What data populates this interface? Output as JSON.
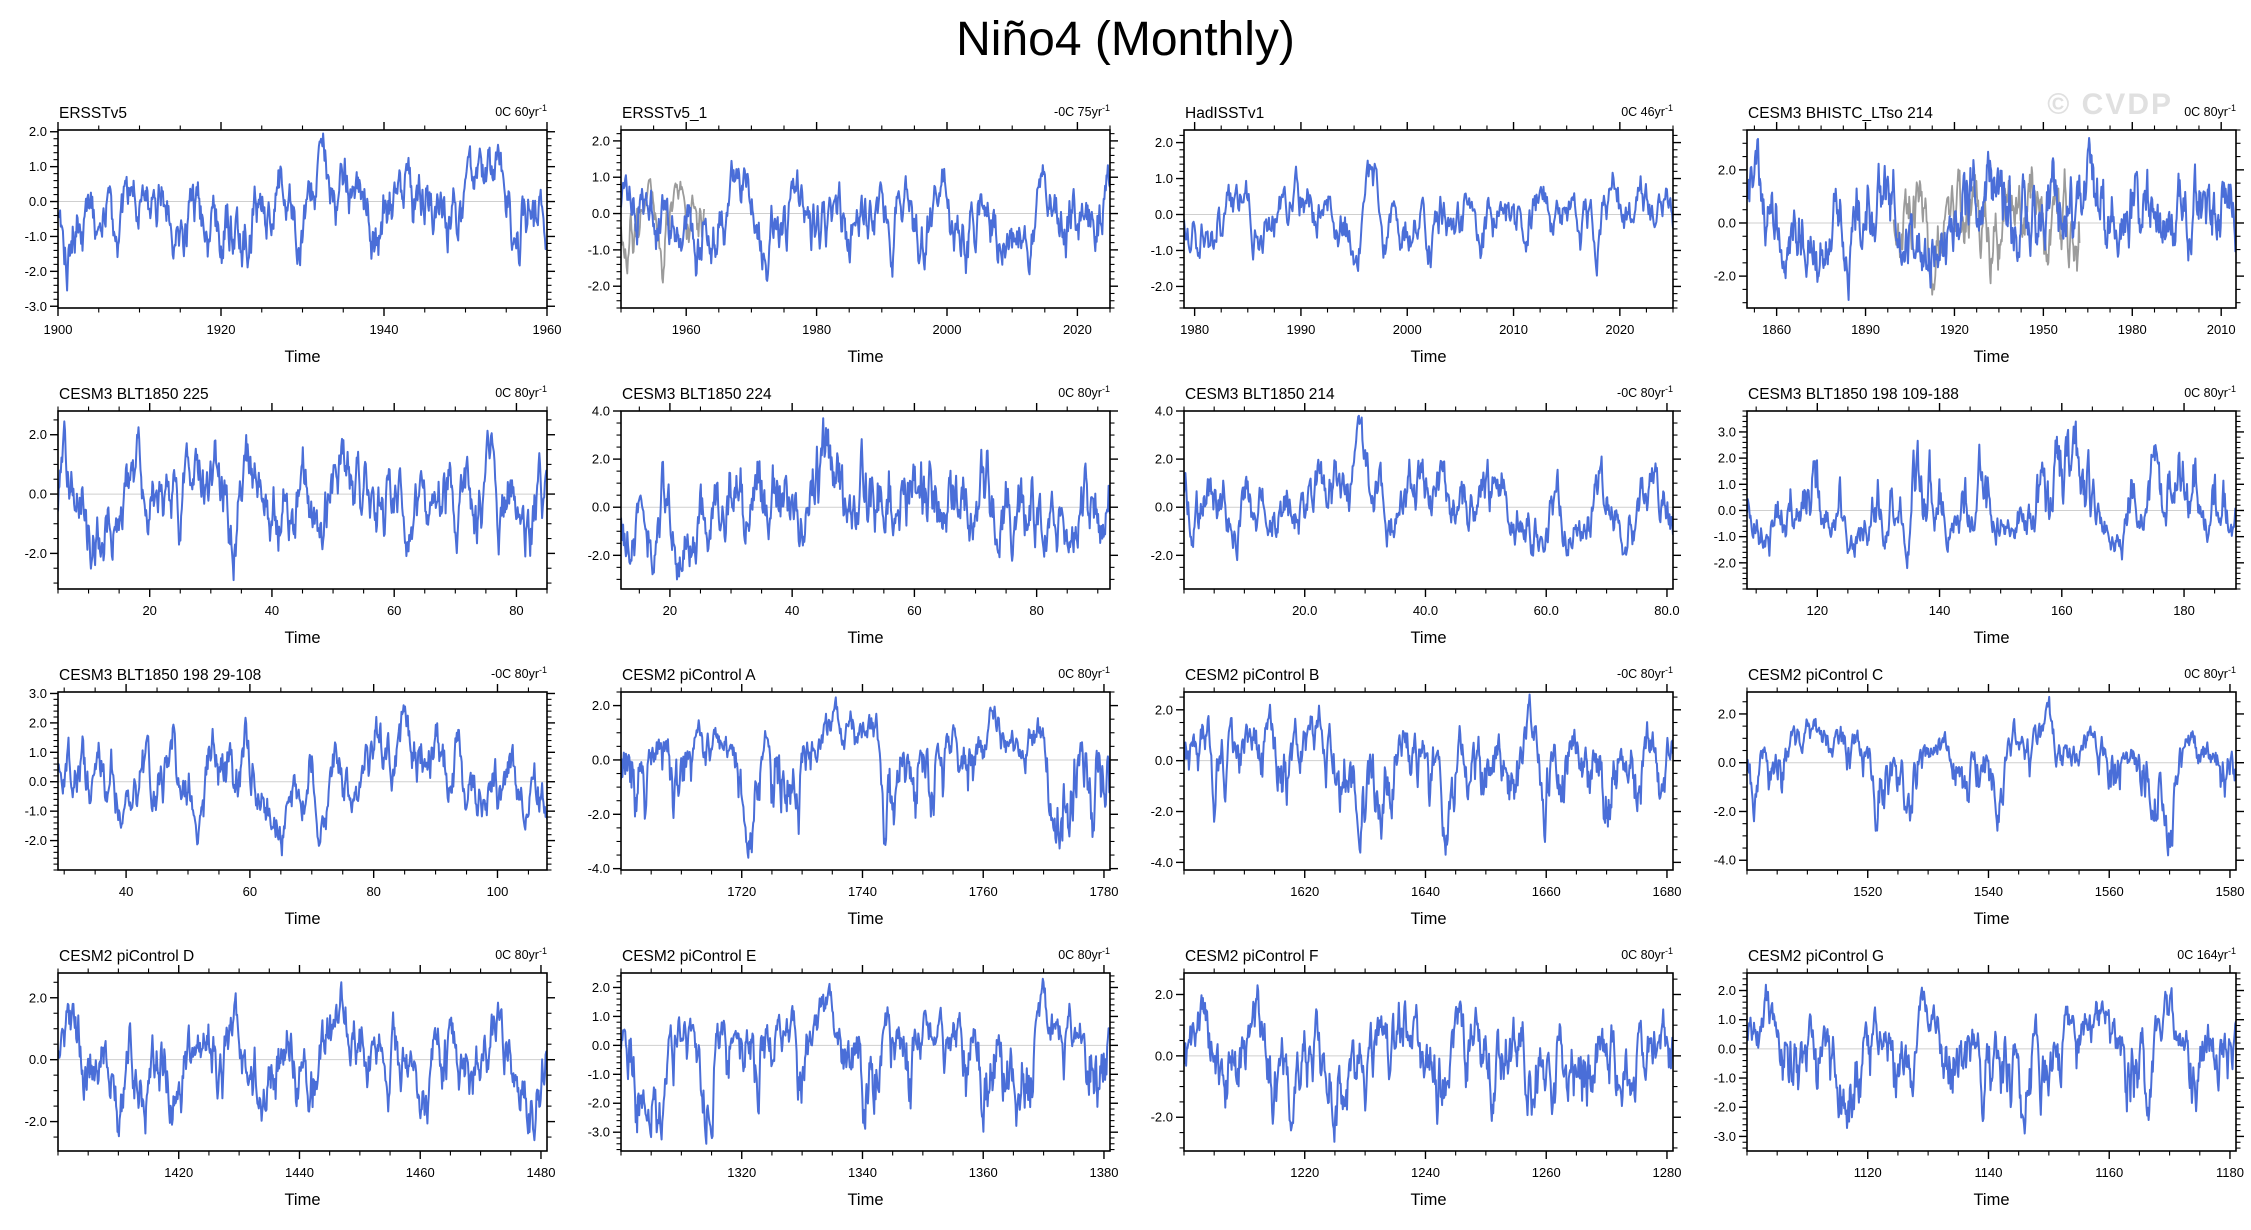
{
  "page": {
    "title": "Niño4 (Monthly)",
    "watermark": "© CVDP",
    "xlabel": "Time"
  },
  "colors": {
    "line": "#4A6ED8",
    "gray_line": "#9B9B9B",
    "zero_line": "#CFCFCF",
    "axis": "#000000",
    "watermark": "#E0E0E0"
  },
  "chart_data": [
    {
      "id": "ersstv5",
      "type": "line",
      "title": "ERSSTv5",
      "trend": {
        "text": "0C 60yr",
        "sup": "-1"
      },
      "xlabel": "Time",
      "ylabel": "",
      "legend": null,
      "grid": false,
      "xlim": [
        1900,
        1960
      ],
      "ylim": [
        -3.05,
        2.05
      ],
      "xticks": {
        "vals": [
          1900,
          1920,
          1940,
          1960
        ],
        "labels": [
          "1900",
          "1920",
          "1940",
          "1960"
        ],
        "minor_step": 5
      },
      "yticks": {
        "vals": [
          2,
          1,
          0,
          -1,
          -2,
          -3
        ],
        "labels": [
          "2.0",
          "1.0",
          "0.0",
          "-1.0",
          "-2.0",
          "-3.0"
        ],
        "minor_step": 0.2
      },
      "series": {
        "seed": 101,
        "points": 700,
        "approx_min": -2.55,
        "approx_max": 1.95
      },
      "gray_series": null
    },
    {
      "id": "ersstv5-1",
      "type": "line",
      "title": "ERSSTv5_1",
      "trend": {
        "text": "-0C 75yr",
        "sup": "-1"
      },
      "xlabel": "Time",
      "ylabel": "",
      "legend": null,
      "grid": false,
      "xlim": [
        1950,
        2025
      ],
      "ylim": [
        -2.6,
        2.3
      ],
      "xticks": {
        "vals": [
          1960,
          1980,
          2000,
          2020
        ],
        "labels": [
          "1960",
          "1980",
          "2000",
          "2020"
        ],
        "minor_step": 5
      },
      "yticks": {
        "vals": [
          2,
          1,
          0,
          -1,
          -2
        ],
        "labels": [
          "2.0",
          "1.0",
          "0.0",
          "-1.0",
          "-2.0"
        ],
        "minor_step": 0.2
      },
      "series": {
        "seed": 102,
        "points": 700,
        "approx_min": -1.85,
        "approx_max": 1.45
      },
      "gray_series": {
        "seed": 202,
        "points": 120,
        "xfrac": [
          0.0,
          0.17
        ],
        "approx_min": -1.9,
        "approx_max": 0.95
      }
    },
    {
      "id": "hadisstv1",
      "type": "line",
      "title": "HadISSTv1",
      "trend": {
        "text": "0C 46yr",
        "sup": "-1"
      },
      "xlabel": "Time",
      "ylabel": "",
      "legend": null,
      "grid": false,
      "xlim": [
        1979,
        2025
      ],
      "ylim": [
        -2.6,
        2.35
      ],
      "xticks": {
        "vals": [
          1980,
          1990,
          2000,
          2010,
          2020
        ],
        "labels": [
          "1980",
          "1990",
          "2000",
          "2010",
          "2020"
        ],
        "minor_step": 2.5
      },
      "yticks": {
        "vals": [
          2,
          1,
          0,
          -1,
          -2
        ],
        "labels": [
          "2.0",
          "1.0",
          "0.0",
          "-1.0",
          "-2.0"
        ],
        "minor_step": 0.2
      },
      "series": {
        "seed": 103,
        "points": 560,
        "approx_min": -1.7,
        "approx_max": 1.5
      },
      "gray_series": null
    },
    {
      "id": "cesm3-bhistc-ltso-214",
      "type": "line",
      "title": "CESM3 BHISTC_LTso 214",
      "trend": {
        "text": "0C 80yr",
        "sup": "-1"
      },
      "xlabel": "Time",
      "ylabel": "",
      "legend": null,
      "grid": false,
      "xlim": [
        1850,
        2015
      ],
      "ylim": [
        -3.2,
        3.5
      ],
      "xticks": {
        "vals": [
          1860,
          1890,
          1920,
          1950,
          1980,
          2010
        ],
        "labels": [
          "1860",
          "1890",
          "1920",
          "1950",
          "1980",
          "2010"
        ],
        "minor_step": 7.5
      },
      "yticks": {
        "vals": [
          2,
          0,
          -2
        ],
        "labels": [
          "2.0",
          "0.0",
          "-2.0"
        ],
        "minor_step": 0.5
      },
      "series": {
        "seed": 104,
        "points": 800,
        "approx_min": -2.9,
        "approx_max": 3.2
      },
      "gray_series": {
        "seed": 204,
        "points": 300,
        "xfrac": [
          0.3,
          0.68
        ],
        "approx_min": -2.7,
        "approx_max": 2.1
      }
    },
    {
      "id": "cesm3-blt1850-225",
      "type": "line",
      "title": "CESM3 BLT1850 225",
      "trend": {
        "text": "0C 80yr",
        "sup": "-1"
      },
      "xlabel": "Time",
      "ylabel": "",
      "legend": null,
      "grid": false,
      "xlim": [
        5,
        85
      ],
      "ylim": [
        -3.2,
        2.8
      ],
      "xticks": {
        "vals": [
          20,
          40,
          60,
          80
        ],
        "labels": [
          "20",
          "40",
          "60",
          "80"
        ],
        "minor_step": 5
      },
      "yticks": {
        "vals": [
          2,
          0,
          -2
        ],
        "labels": [
          "2.0",
          "0.0",
          "-2.0"
        ],
        "minor_step": 0.5
      },
      "series": {
        "seed": 105,
        "points": 700,
        "approx_min": -2.9,
        "approx_max": 2.45
      },
      "gray_series": null
    },
    {
      "id": "cesm3-blt1850-224",
      "type": "line",
      "title": "CESM3 BLT1850 224",
      "trend": {
        "text": "0C 80yr",
        "sup": "-1"
      },
      "xlabel": "Time",
      "ylabel": "",
      "legend": null,
      "grid": false,
      "xlim": [
        12,
        92
      ],
      "ylim": [
        -3.4,
        4.0
      ],
      "xticks": {
        "vals": [
          20,
          40,
          60,
          80
        ],
        "labels": [
          "20",
          "40",
          "60",
          "80"
        ],
        "minor_step": 5
      },
      "yticks": {
        "vals": [
          4,
          2,
          0,
          -2
        ],
        "labels": [
          "4.0",
          "2.0",
          "0.0",
          "-2.0"
        ],
        "minor_step": 0.5
      },
      "series": {
        "seed": 106,
        "points": 700,
        "approx_min": -3.0,
        "approx_max": 3.7
      },
      "gray_series": null
    },
    {
      "id": "cesm3-blt1850-214",
      "type": "line",
      "title": "CESM3 BLT1850 214",
      "trend": {
        "text": "-0C 80yr",
        "sup": "-1"
      },
      "xlabel": "Time",
      "ylabel": "",
      "legend": null,
      "grid": false,
      "xlim": [
        0,
        81
      ],
      "ylim": [
        -3.4,
        4.0
      ],
      "xticks": {
        "vals": [
          20,
          40,
          60,
          80
        ],
        "labels": [
          "20.0",
          "40.0",
          "60.0",
          "80.0"
        ],
        "minor_step": 5
      },
      "yticks": {
        "vals": [
          4,
          2,
          0,
          -2
        ],
        "labels": [
          "4.0",
          "2.0",
          "0.0",
          "-2.0"
        ],
        "minor_step": 0.5
      },
      "series": {
        "seed": 107,
        "points": 700,
        "approx_min": -2.2,
        "approx_max": 3.8
      },
      "gray_series": null
    },
    {
      "id": "cesm3-blt1850-198-109-188",
      "type": "line",
      "title": "CESM3 BLT1850 198 109-188",
      "trend": {
        "text": "0C 80yr",
        "sup": "-1"
      },
      "xlabel": "Time",
      "ylabel": "",
      "legend": null,
      "grid": false,
      "xlim": [
        108.5,
        188.5
      ],
      "ylim": [
        -3.0,
        3.8
      ],
      "xticks": {
        "vals": [
          120,
          140,
          160,
          180
        ],
        "labels": [
          "120",
          "140",
          "160",
          "180"
        ],
        "minor_step": 5
      },
      "yticks": {
        "vals": [
          3,
          2,
          1,
          0,
          -1,
          -2
        ],
        "labels": [
          "3.0",
          "2.0",
          "1.0",
          "0.0",
          "-1.0",
          "-2.0"
        ],
        "minor_step": 0.2
      },
      "series": {
        "seed": 108,
        "points": 700,
        "approx_min": -2.2,
        "approx_max": 3.4
      },
      "gray_series": null
    },
    {
      "id": "cesm3-blt1850-198-29-108",
      "type": "line",
      "title": "CESM3 BLT1850 198 29-108",
      "trend": {
        "text": "-0C 80yr",
        "sup": "-1"
      },
      "xlabel": "Time",
      "ylabel": "",
      "legend": null,
      "grid": false,
      "xlim": [
        29,
        108
      ],
      "ylim": [
        -3.0,
        3.05
      ],
      "xticks": {
        "vals": [
          40,
          60,
          80,
          100
        ],
        "labels": [
          "40",
          "60",
          "80",
          "100"
        ],
        "minor_step": 5
      },
      "yticks": {
        "vals": [
          3,
          2,
          1,
          0,
          -1,
          -2
        ],
        "labels": [
          "3.0",
          "2.0",
          "1.0",
          "0.0",
          "-1.0",
          "-2.0"
        ],
        "minor_step": 0.2
      },
      "series": {
        "seed": 109,
        "points": 700,
        "approx_min": -2.5,
        "approx_max": 2.6
      },
      "gray_series": null
    },
    {
      "id": "cesm2-picontrol-a",
      "type": "line",
      "title": "CESM2 piControl A",
      "trend": {
        "text": "0C 80yr",
        "sup": "-1"
      },
      "xlabel": "Time",
      "ylabel": "",
      "legend": null,
      "grid": false,
      "xlim": [
        1700,
        1781
      ],
      "ylim": [
        -4.05,
        2.5
      ],
      "xticks": {
        "vals": [
          1720,
          1740,
          1760,
          1780
        ],
        "labels": [
          "1720",
          "1740",
          "1760",
          "1780"
        ],
        "minor_step": 5
      },
      "yticks": {
        "vals": [
          2,
          0,
          -2,
          -4
        ],
        "labels": [
          "2.0",
          "0.0",
          "-2.0",
          "-4.0"
        ],
        "minor_step": 0.5
      },
      "series": {
        "seed": 110,
        "points": 700,
        "approx_min": -3.6,
        "approx_max": 2.3
      },
      "gray_series": null
    },
    {
      "id": "cesm2-picontrol-b",
      "type": "line",
      "title": "CESM2 piControl B",
      "trend": {
        "text": "-0C 80yr",
        "sup": "-1"
      },
      "xlabel": "Time",
      "ylabel": "",
      "legend": null,
      "grid": false,
      "xlim": [
        1600,
        1681
      ],
      "ylim": [
        -4.3,
        2.7
      ],
      "xticks": {
        "vals": [
          1620,
          1640,
          1660,
          1680
        ],
        "labels": [
          "1620",
          "1640",
          "1660",
          "1680"
        ],
        "minor_step": 5
      },
      "yticks": {
        "vals": [
          2,
          0,
          -2,
          -4
        ],
        "labels": [
          "2.0",
          "0.0",
          "-2.0",
          "-4.0"
        ],
        "minor_step": 0.5
      },
      "series": {
        "seed": 111,
        "points": 700,
        "approx_min": -3.7,
        "approx_max": 2.6
      },
      "gray_series": null
    },
    {
      "id": "cesm2-picontrol-c",
      "type": "line",
      "title": "CESM2 piControl C",
      "trend": {
        "text": "0C 80yr",
        "sup": "-1"
      },
      "xlabel": "Time",
      "ylabel": "",
      "legend": null,
      "grid": false,
      "xlim": [
        1500,
        1581
      ],
      "ylim": [
        -4.4,
        2.9
      ],
      "xticks": {
        "vals": [
          1520,
          1540,
          1560,
          1580
        ],
        "labels": [
          "1520",
          "1540",
          "1560",
          "1580"
        ],
        "minor_step": 5
      },
      "yticks": {
        "vals": [
          2,
          0,
          -2,
          -4
        ],
        "labels": [
          "2.0",
          "0.0",
          "-2.0",
          "-4.0"
        ],
        "minor_step": 0.5
      },
      "series": {
        "seed": 112,
        "points": 700,
        "approx_min": -3.8,
        "approx_max": 2.7
      },
      "gray_series": null
    },
    {
      "id": "cesm2-picontrol-d",
      "type": "line",
      "title": "CESM2 piControl D",
      "trend": {
        "text": "0C 80yr",
        "sup": "-1"
      },
      "xlabel": "Time",
      "ylabel": "",
      "legend": null,
      "grid": false,
      "xlim": [
        1400,
        1481
      ],
      "ylim": [
        -2.95,
        2.8
      ],
      "xticks": {
        "vals": [
          1420,
          1440,
          1460,
          1480
        ],
        "labels": [
          "1420",
          "1440",
          "1460",
          "1480"
        ],
        "minor_step": 5
      },
      "yticks": {
        "vals": [
          2,
          0,
          -2
        ],
        "labels": [
          "2.0",
          "0.0",
          "-2.0"
        ],
        "minor_step": 0.5
      },
      "series": {
        "seed": 113,
        "points": 700,
        "approx_min": -2.6,
        "approx_max": 2.5
      },
      "gray_series": null
    },
    {
      "id": "cesm2-picontrol-e",
      "type": "line",
      "title": "CESM2 piControl E",
      "trend": {
        "text": "0C 80yr",
        "sup": "-1"
      },
      "xlabel": "Time",
      "ylabel": "",
      "legend": null,
      "grid": false,
      "xlim": [
        1300,
        1381
      ],
      "ylim": [
        -3.65,
        2.5
      ],
      "xticks": {
        "vals": [
          1320,
          1340,
          1360,
          1380
        ],
        "labels": [
          "1320",
          "1340",
          "1360",
          "1380"
        ],
        "minor_step": 5
      },
      "yticks": {
        "vals": [
          2,
          1,
          0,
          -1,
          -2,
          -3
        ],
        "labels": [
          "2.0",
          "1.0",
          "0.0",
          "-1.0",
          "-2.0",
          "-3.0"
        ],
        "minor_step": 0.2
      },
      "series": {
        "seed": 114,
        "points": 700,
        "approx_min": -3.4,
        "approx_max": 2.3
      },
      "gray_series": null
    },
    {
      "id": "cesm2-picontrol-f",
      "type": "line",
      "title": "CESM2 piControl F",
      "trend": {
        "text": "0C 80yr",
        "sup": "-1"
      },
      "xlabel": "Time",
      "ylabel": "",
      "legend": null,
      "grid": false,
      "xlim": [
        1200,
        1281
      ],
      "ylim": [
        -3.1,
        2.7
      ],
      "xticks": {
        "vals": [
          1220,
          1240,
          1260,
          1280
        ],
        "labels": [
          "1220",
          "1240",
          "1260",
          "1280"
        ],
        "minor_step": 5
      },
      "yticks": {
        "vals": [
          2,
          0,
          -2
        ],
        "labels": [
          "2.0",
          "0.0",
          "-2.0"
        ],
        "minor_step": 0.5
      },
      "series": {
        "seed": 115,
        "points": 700,
        "approx_min": -2.8,
        "approx_max": 2.3
      },
      "gray_series": null
    },
    {
      "id": "cesm2-picontrol-g",
      "type": "line",
      "title": "CESM2 piControl G",
      "trend": {
        "text": "0C 164yr",
        "sup": "-1"
      },
      "xlabel": "Time",
      "ylabel": "",
      "legend": null,
      "grid": false,
      "xlim": [
        1100,
        1181
      ],
      "ylim": [
        -3.5,
        2.6
      ],
      "xticks": {
        "vals": [
          1120,
          1140,
          1160,
          1180
        ],
        "labels": [
          "1120",
          "1140",
          "1160",
          "1180"
        ],
        "minor_step": 5
      },
      "yticks": {
        "vals": [
          2,
          1,
          0,
          -1,
          -2,
          -3
        ],
        "labels": [
          "2.0",
          "1.0",
          "0.0",
          "-1.0",
          "-2.0",
          "-3.0"
        ],
        "minor_step": 0.2
      },
      "series": {
        "seed": 116,
        "points": 700,
        "approx_min": -2.9,
        "approx_max": 2.2
      },
      "gray_series": null
    }
  ]
}
